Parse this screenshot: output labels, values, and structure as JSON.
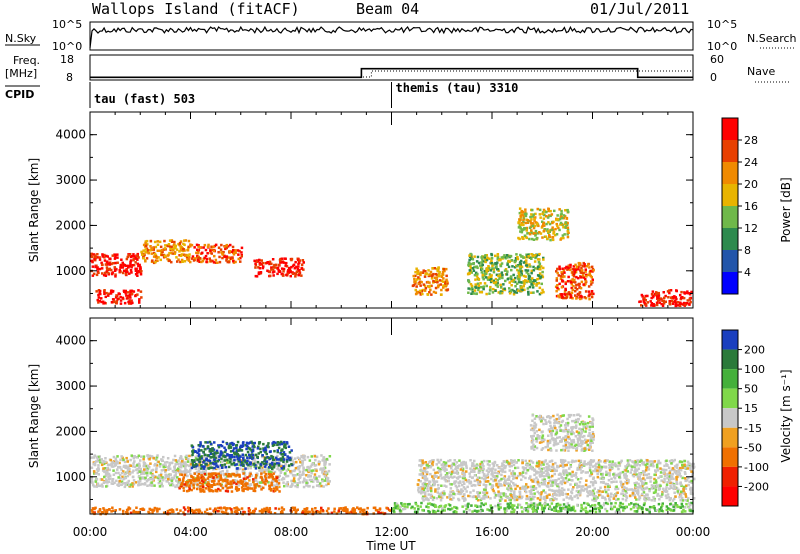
{
  "header": {
    "site": "Wallops Island (fitACF)",
    "beam": "Beam 04",
    "date": "01/Jul/2011"
  },
  "nsky_panel": {
    "left_label": "N.Sky",
    "right_label": "N.Search",
    "ticks_left": [
      "10^5",
      "10^0"
    ],
    "ticks_right": [
      "10^5",
      "10^0"
    ]
  },
  "freq_panel": {
    "left_label_1": "Freq.",
    "left_label_2": "[MHz]",
    "right_label": "Nave",
    "ticks_left": [
      "18",
      "8"
    ],
    "ticks_right": [
      "60",
      "0"
    ]
  },
  "cpid_panel": {
    "label": "CPID",
    "mode1": "tau (fast) 503",
    "mode2": "themis (tau) 3310"
  },
  "x_axis": {
    "label": "Time UT",
    "ticks": [
      "00:00",
      "04:00",
      "08:00",
      "12:00",
      "16:00",
      "20:00",
      "00:00"
    ]
  },
  "power_panel": {
    "ylabel": "Slant Range [km]",
    "yticks": [
      "1000",
      "2000",
      "3000",
      "4000"
    ],
    "colorbar_label": "Power [dB]",
    "colorbar_ticks": [
      "4",
      "8",
      "12",
      "16",
      "20",
      "24",
      "28"
    ],
    "colors": [
      "#0000ff",
      "#2255aa",
      "#2d8a4e",
      "#6fb84a",
      "#e8b400",
      "#f08a00",
      "#e84000",
      "#ff0000"
    ]
  },
  "velocity_panel": {
    "ylabel": "Slant Range [km]",
    "yticks": [
      "1000",
      "2000",
      "3000",
      "4000"
    ],
    "colorbar_label": "Velocity [m s⁻¹]",
    "colorbar_ticks": [
      "200",
      "100",
      "50",
      "15",
      "-15",
      "-50",
      "-100",
      "-200"
    ],
    "colors": [
      "#1a3fbf",
      "#2b7a3a",
      "#44b03a",
      "#80d84a",
      "#c8c8c8",
      "#f0a020",
      "#f07000",
      "#f02000",
      "#ff0000"
    ]
  },
  "chart_data": {
    "type": "heatmap",
    "x_range_hours": [
      0,
      24
    ],
    "y_range_km": [
      180,
      4500
    ],
    "cpid_switch_hour": 12.0,
    "nave_step": [
      {
        "start_hour": 0,
        "end_hour": 10.8,
        "nave": 2
      },
      {
        "start_hour": 10.8,
        "end_hour": 21.8,
        "nave": 28
      },
      {
        "start_hour": 21.8,
        "end_hour": 24,
        "nave": 2
      }
    ],
    "power_bands": [
      {
        "t0": 0.0,
        "t1": 2.0,
        "r0": 900,
        "r1": 1400,
        "level": 7
      },
      {
        "t0": 2.0,
        "t1": 4.0,
        "r0": 1200,
        "r1": 1700,
        "level": 5
      },
      {
        "t0": 4.0,
        "t1": 6.0,
        "r0": 1200,
        "r1": 1600,
        "level": 6
      },
      {
        "t0": 6.5,
        "t1": 8.5,
        "r0": 900,
        "r1": 1300,
        "level": 7
      },
      {
        "t0": 0.2,
        "t1": 2.0,
        "r0": 300,
        "r1": 600,
        "level": 7
      },
      {
        "t0": 21.8,
        "t1": 23.9,
        "r0": 250,
        "r1": 600,
        "level": 7
      },
      {
        "t0": 18.5,
        "t1": 20.0,
        "r0": 400,
        "r1": 1200,
        "level": 6
      },
      {
        "t0": 12.8,
        "t1": 14.2,
        "r0": 500,
        "r1": 1100,
        "level": 5
      },
      {
        "t0": 15.0,
        "t1": 18.0,
        "r0": 500,
        "r1": 1400,
        "level": 3
      },
      {
        "t0": 17.0,
        "t1": 19.0,
        "r0": 1700,
        "r1": 2400,
        "level": 4
      }
    ],
    "velocity_bands": [
      {
        "t0": 0.0,
        "t1": 9.5,
        "r0": 800,
        "r1": 1500,
        "velocity": 0
      },
      {
        "t0": 4.0,
        "t1": 8.0,
        "r0": 1200,
        "r1": 1800,
        "velocity": 150
      },
      {
        "t0": 3.5,
        "t1": 7.5,
        "r0": 700,
        "r1": 1100,
        "velocity": -60
      },
      {
        "t0": 0.0,
        "t1": 12.0,
        "r0": 200,
        "r1": 350,
        "velocity": -60
      },
      {
        "t0": 12.0,
        "t1": 24.0,
        "r0": 250,
        "r1": 450,
        "velocity": 30
      },
      {
        "t0": 13.0,
        "t1": 24.0,
        "r0": 500,
        "r1": 1400,
        "velocity": 0
      },
      {
        "t0": 17.5,
        "t1": 20.0,
        "r0": 1600,
        "r1": 2400,
        "velocity": 0
      }
    ]
  }
}
